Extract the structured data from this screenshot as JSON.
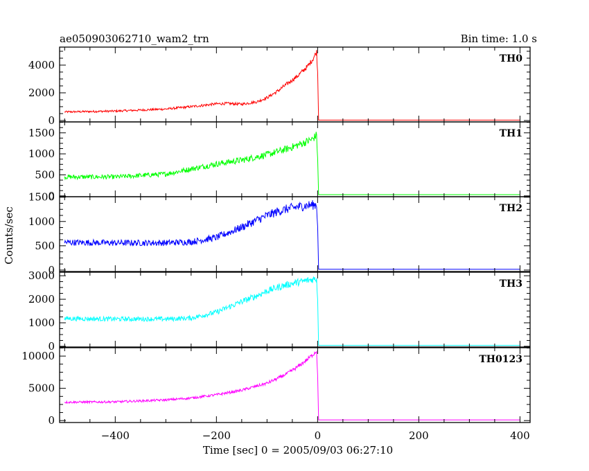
{
  "header": {
    "title": "ae050903062710_wam2_trn",
    "bin_time": "Bin time: 1.0 s"
  },
  "xlabel": "Time [sec] 0 = 2005/09/03 06:27:10",
  "ylabel": "Counts/sec",
  "chart_data": {
    "type": "line",
    "title": "ae050903062710_wam2_trn",
    "xlabel": "Time [sec] 0 = 2005/09/03 06:27:10",
    "ylabel": "Counts/sec",
    "xlim": [
      -510,
      420
    ],
    "x_ticks": [
      -400,
      -200,
      0,
      200,
      400
    ],
    "x_tick_labels": [
      "−400",
      "−200",
      "0",
      "200",
      "400"
    ],
    "grid": false,
    "series": [
      {
        "name": "TH0",
        "color": "#ff0000",
        "ylim": [
          -100,
          5300
        ],
        "y_ticks": [
          0,
          2000,
          4000
        ],
        "y_tick_labels": [
          "0",
          "2000",
          "4000"
        ],
        "x": [
          -500,
          -400,
          -300,
          -250,
          -200,
          -180,
          -150,
          -120,
          -100,
          -80,
          -60,
          -40,
          -20,
          -10,
          -2,
          0,
          2,
          400
        ],
        "values": [
          620,
          680,
          830,
          1000,
          1200,
          1230,
          1180,
          1350,
          1650,
          2100,
          2650,
          3200,
          3900,
          4400,
          4950,
          3500,
          30,
          30
        ],
        "noise": 70
      },
      {
        "name": "TH1",
        "color": "#00ff00",
        "ylim": [
          -20,
          1760
        ],
        "y_ticks": [
          0,
          500,
          1000,
          1500
        ],
        "y_tick_labels": [
          "0",
          "500",
          "1000",
          "1500"
        ],
        "x": [
          -500,
          -400,
          -300,
          -250,
          -200,
          -150,
          -100,
          -60,
          -30,
          -10,
          -2,
          0,
          2,
          400
        ],
        "values": [
          450,
          450,
          520,
          640,
          760,
          850,
          980,
          1120,
          1250,
          1350,
          1450,
          900,
          30,
          30
        ],
        "noise": 55
      },
      {
        "name": "TH2",
        "color": "#0000ff",
        "ylim": [
          -30,
          1510
        ],
        "y_ticks": [
          0,
          500,
          1000,
          1500
        ],
        "y_tick_labels": [
          "0",
          "500",
          "1000",
          "1500"
        ],
        "x": [
          -500,
          -400,
          -300,
          -250,
          -200,
          -150,
          -120,
          -100,
          -80,
          -60,
          -40,
          -20,
          -2,
          0,
          2,
          400
        ],
        "values": [
          570,
          560,
          560,
          580,
          670,
          880,
          1030,
          1120,
          1200,
          1260,
          1300,
          1330,
          1350,
          900,
          15,
          15
        ],
        "noise": 65
      },
      {
        "name": "TH3",
        "color": "#00ffff",
        "ylim": [
          -30,
          3150
        ],
        "y_ticks": [
          0,
          1000,
          2000,
          3000
        ],
        "y_tick_labels": [
          "0",
          "1000",
          "2000",
          "3000"
        ],
        "x": [
          -500,
          -400,
          -300,
          -250,
          -200,
          -150,
          -120,
          -100,
          -80,
          -60,
          -40,
          -20,
          -2,
          0,
          2,
          400
        ],
        "values": [
          1180,
          1160,
          1160,
          1200,
          1450,
          1900,
          2150,
          2350,
          2500,
          2620,
          2720,
          2800,
          2880,
          2000,
          40,
          40
        ],
        "noise": 100
      },
      {
        "name": "TH0123",
        "color": "#ff00ff",
        "ylim": [
          -300,
          11300
        ],
        "y_ticks": [
          0,
          5000,
          10000
        ],
        "y_tick_labels": [
          "0",
          "5000",
          "10000"
        ],
        "x": [
          -500,
          -400,
          -300,
          -250,
          -200,
          -150,
          -100,
          -80,
          -60,
          -40,
          -20,
          -10,
          -2,
          0,
          2,
          400
        ],
        "values": [
          2850,
          2900,
          3200,
          3500,
          4000,
          4700,
          5800,
          6500,
          7300,
          8300,
          9500,
          10200,
          10800,
          7000,
          110,
          110
        ],
        "noise": 170
      }
    ]
  }
}
